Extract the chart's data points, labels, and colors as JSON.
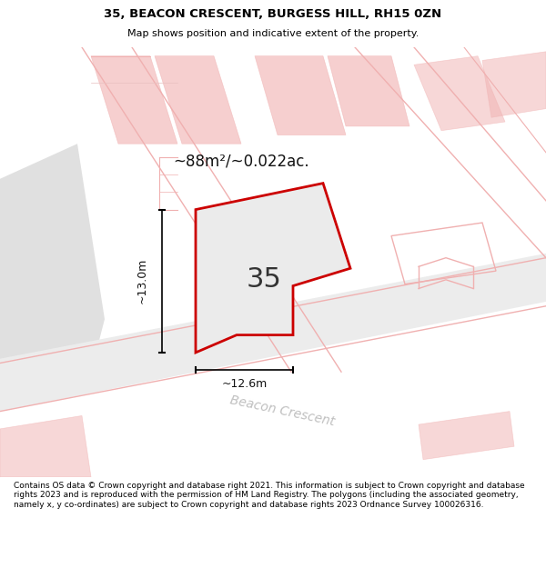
{
  "title_line1": "35, BEACON CRESCENT, BURGESS HILL, RH15 0ZN",
  "title_line2": "Map shows position and indicative extent of the property.",
  "area_text": "~88m²/~0.022ac.",
  "label_35": "35",
  "dim_width": "~12.6m",
  "dim_height": "~13.0m",
  "road_label": "Beacon Crescent",
  "footer_text": "Contains OS data © Crown copyright and database right 2021. This information is subject to Crown copyright and database rights 2023 and is reproduced with the permission of HM Land Registry. The polygons (including the associated geometry, namely x, y co-ordinates) are subject to Crown copyright and database rights 2023 Ordnance Survey 100026316.",
  "map_bg": "#f8f8f8",
  "plot_fill": "#ebebeb",
  "plot_edge": "#cc0000",
  "road_lines_color": "#f0b0b0",
  "title_bg": "#ffffff",
  "footer_bg": "#ffffff",
  "grey_block_color": "#d8d8d8",
  "grey_road_color": "#e0e0e0"
}
